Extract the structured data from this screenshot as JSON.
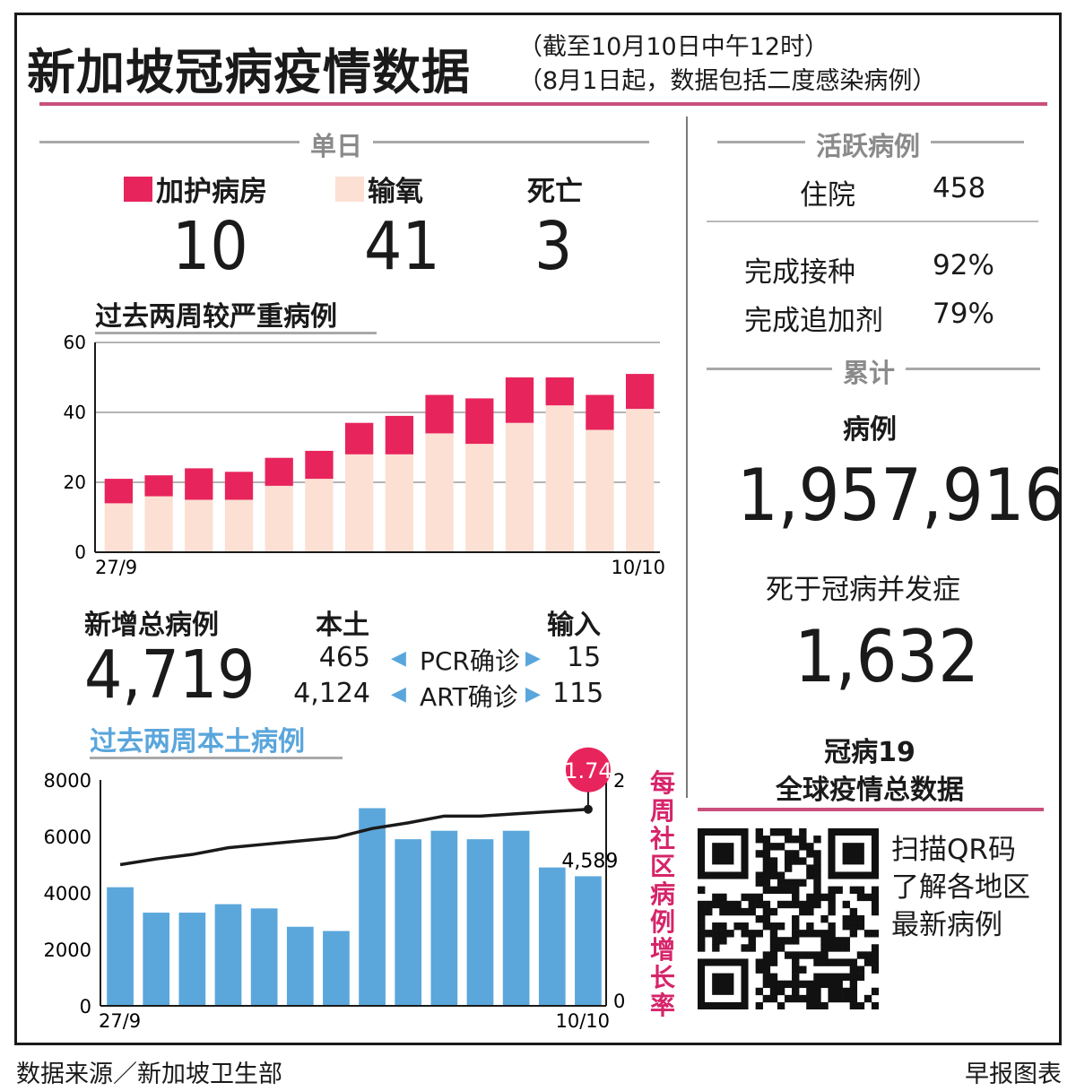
{
  "header": {
    "title": "新加坡冠病疫情数据",
    "subtitle_1": "（截至10月10日中午12时）",
    "subtitle_2": "（8月1日起，数据包括二度感染病例）"
  },
  "daily": {
    "section_label": "单日",
    "icu_label": "加护病房",
    "icu_value": "10",
    "oxygen_label": "输氧",
    "oxygen_value": "41",
    "death_label": "死亡",
    "death_value": "3"
  },
  "cases": {
    "new_total_label": "新增总病例",
    "new_total_value": "4,719",
    "local_label": "本土",
    "imported_label": "输入",
    "pcr_label": "PCR确诊",
    "pcr_local": "465",
    "pcr_imported": "15",
    "art_label": "ART确诊",
    "art_local": "4,124",
    "art_imported": "115"
  },
  "active": {
    "section_label": "活跃病例",
    "hospital_label": "住院",
    "hospital_value": "458",
    "vaccinated_label": "完成接种",
    "vaccinated_value": "92%",
    "booster_label": "完成追加剂",
    "booster_value": "79%"
  },
  "cumulative": {
    "section_label": "累计",
    "cases_label": "病例",
    "cases_value": "1,957,916",
    "deaths_label": "死于冠病并发症",
    "deaths_value": "1,632"
  },
  "global": {
    "title_1": "冠病19",
    "title_2": "全球疫情总数据",
    "qr_text_1": "扫描QR码",
    "qr_text_2": "了解各地区",
    "qr_text_3": "最新病例"
  },
  "footer": {
    "source": "数据来源／新加坡卫生部",
    "credit": "早报图表"
  },
  "colors": {
    "icu": "#e8245c",
    "oxygen": "#fbe0d3",
    "local_bar": "#5ba7dc",
    "accent_pink": "#c94f7c",
    "rate_label": "#d6246a",
    "subhead_blue": "#5aa6dc"
  },
  "chart_data": [
    {
      "type": "bar",
      "title": "过去两周较严重病例",
      "stacked": true,
      "x_start_label": "27/9",
      "x_end_label": "10/10",
      "ylim": [
        0,
        60
      ],
      "yticks": [
        0,
        20,
        40,
        60
      ],
      "grid": true,
      "series": [
        {
          "values": [
            14,
            16,
            15,
            15,
            19,
            21,
            28,
            28,
            34,
            31,
            37,
            42,
            35,
            41
          ]
        },
        {
          "values": [
            7,
            6,
            9,
            8,
            8,
            8,
            9,
            11,
            11,
            13,
            13,
            8,
            10,
            10
          ]
        }
      ]
    },
    {
      "type": "bar",
      "title": "过去两周本土病例",
      "x_start_label": "27/9",
      "x_end_label": "10/10",
      "ylim": [
        0,
        8000
      ],
      "yticks": [
        0,
        2000,
        4000,
        6000,
        8000
      ],
      "values": [
        4200,
        3300,
        3300,
        3600,
        3450,
        2800,
        2650,
        7000,
        5900,
        6200,
        5900,
        6200,
        4900,
        4589
      ],
      "last_value_label": "4,589",
      "line_series": {
        "name": "每周社区病例增长率",
        "axis_range": [
          0,
          2
        ],
        "axis_ticks": [
          "0",
          "2"
        ],
        "values": [
          1.25,
          1.3,
          1.34,
          1.4,
          1.43,
          1.46,
          1.49,
          1.57,
          1.62,
          1.68,
          1.68,
          1.7,
          1.72,
          1.74
        ],
        "end_label": "1.74"
      }
    }
  ]
}
